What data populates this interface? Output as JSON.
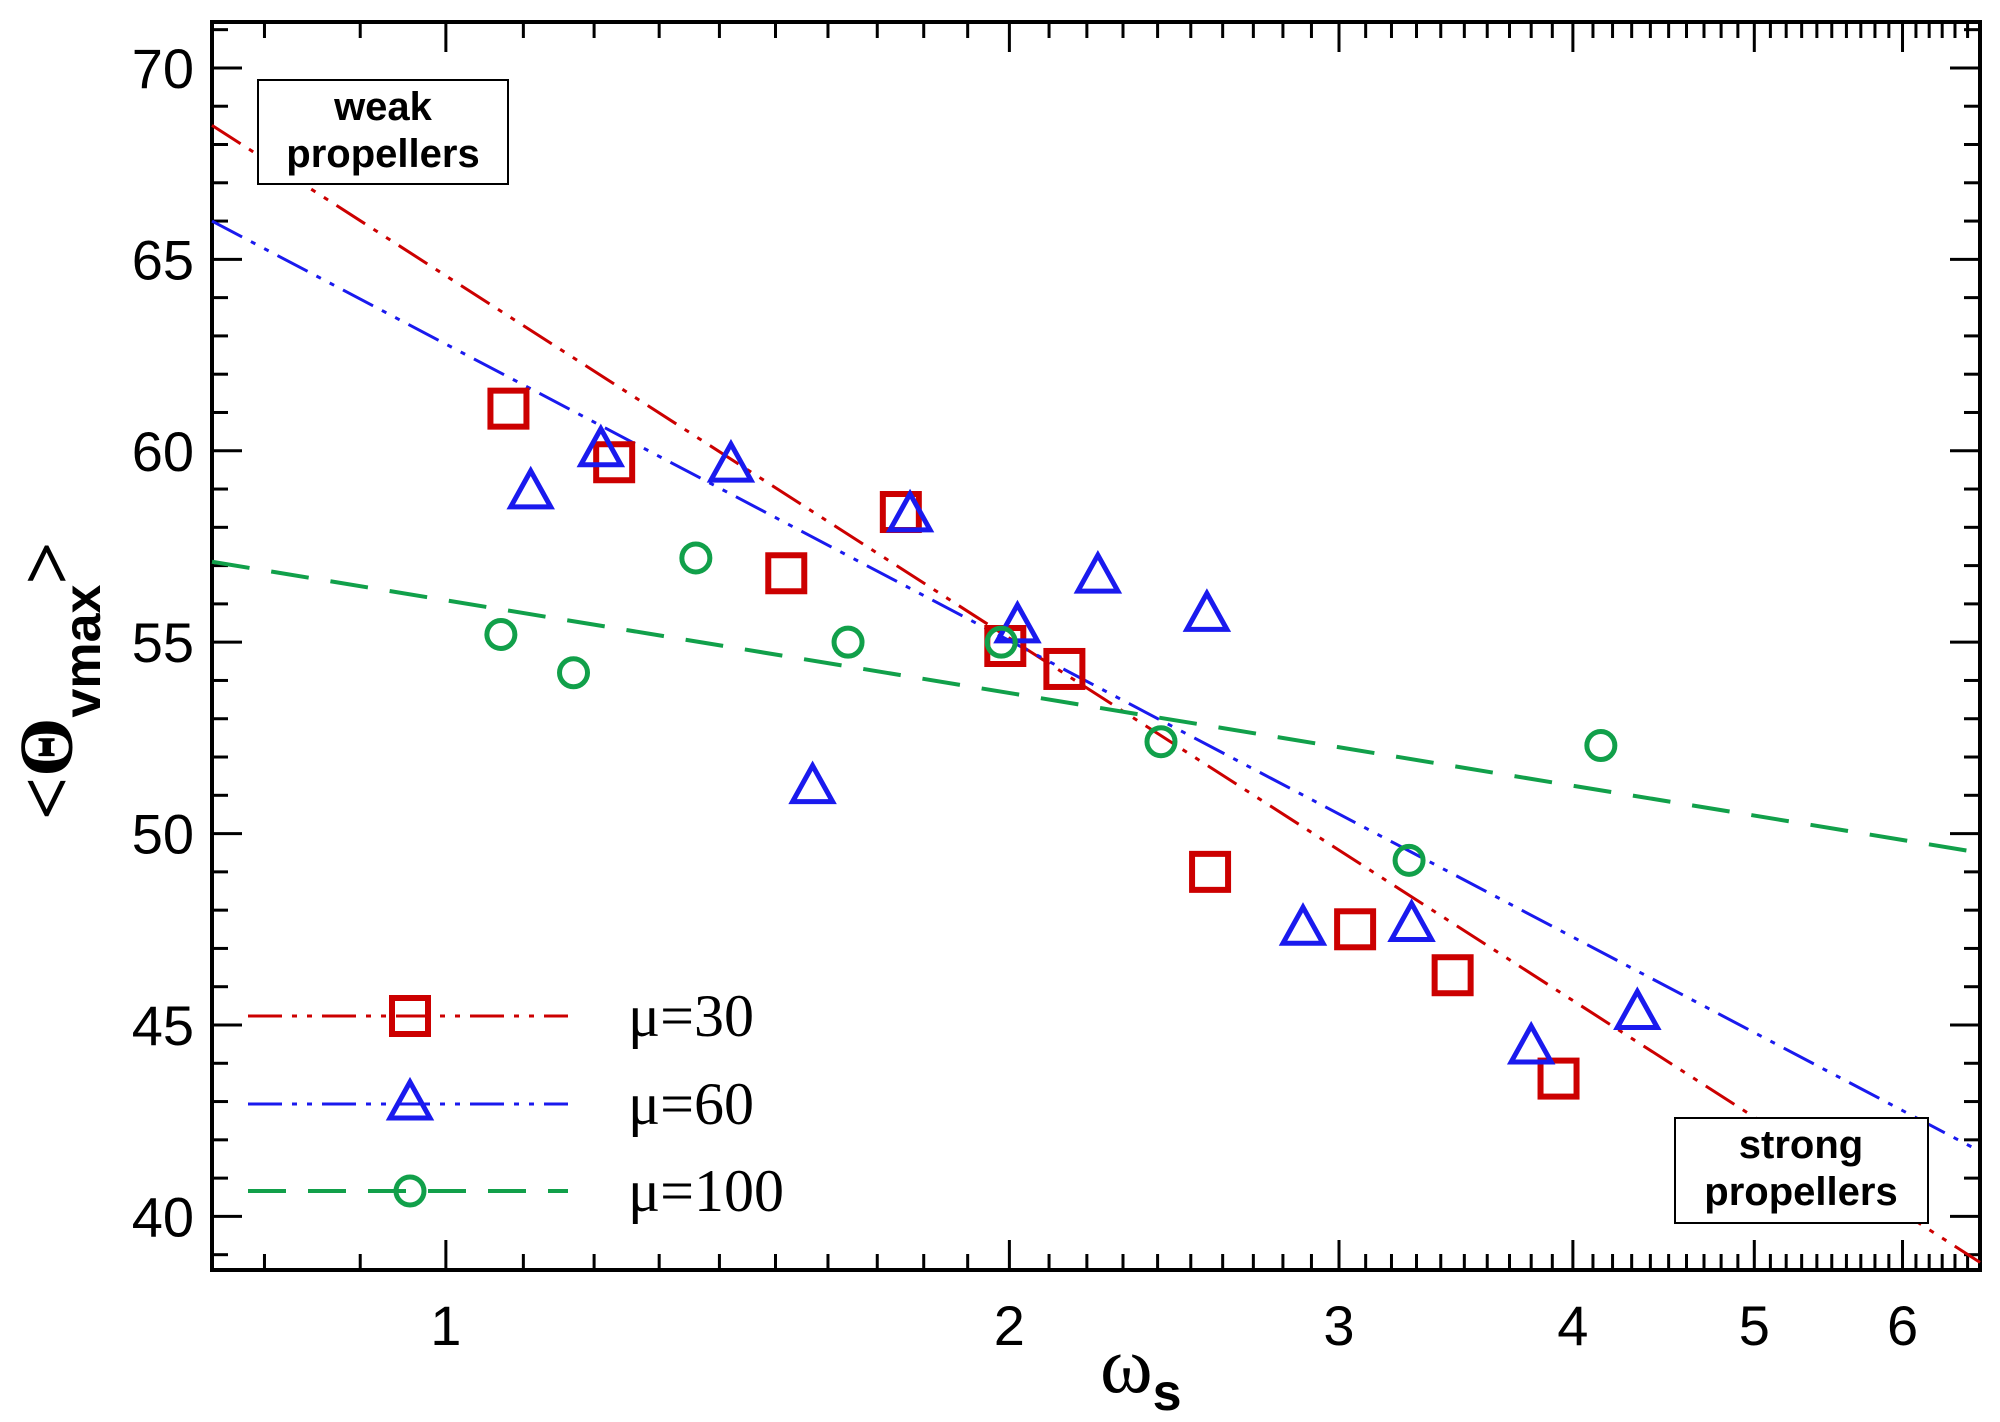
{
  "chart_data": {
    "type": "scatter",
    "title": "",
    "xlabel": {
      "symbol": "ω",
      "subscript": "s"
    },
    "ylabel": {
      "text": "<Θ",
      "subscript": "vmax",
      "close": ">"
    },
    "xscale": "log",
    "xlim": [
      0.75,
      6.6
    ],
    "ylim": [
      38.6,
      71.2
    ],
    "xticks": [
      1,
      2,
      3,
      4,
      5,
      6
    ],
    "yticks": [
      40,
      45,
      50,
      55,
      60,
      65,
      70
    ],
    "grid": false,
    "legend": {
      "position": "bottom-left"
    },
    "series": [
      {
        "name": "μ=30",
        "color": "#cc0000",
        "marker": "square",
        "line_style": "dash-dot-dot",
        "points": [
          [
            1.08,
            61.1
          ],
          [
            1.23,
            59.7
          ],
          [
            1.52,
            56.8
          ],
          [
            1.75,
            58.4
          ],
          [
            1.99,
            54.9
          ],
          [
            2.14,
            54.3
          ],
          [
            2.56,
            49.0
          ],
          [
            3.06,
            47.5
          ],
          [
            3.45,
            46.3
          ],
          [
            3.93,
            43.6
          ]
        ],
        "fit": [
          [
            0.75,
            68.5
          ],
          [
            6.6,
            38.8
          ]
        ]
      },
      {
        "name": "μ=60",
        "color": "#1a1aee",
        "marker": "triangle",
        "line_style": "dash-dot-dot",
        "points": [
          [
            1.11,
            58.9
          ],
          [
            1.21,
            60.0
          ],
          [
            1.42,
            59.6
          ],
          [
            1.57,
            51.2
          ],
          [
            1.77,
            58.3
          ],
          [
            2.02,
            55.4
          ],
          [
            2.23,
            56.7
          ],
          [
            2.55,
            55.7
          ],
          [
            2.87,
            47.5
          ],
          [
            3.28,
            47.6
          ],
          [
            3.8,
            44.4
          ],
          [
            4.33,
            45.3
          ]
        ],
        "fit": [
          [
            0.75,
            66.0
          ],
          [
            6.6,
            41.7
          ]
        ]
      },
      {
        "name": "μ=100",
        "color": "#11a04a",
        "marker": "circle",
        "line_style": "dashed",
        "points": [
          [
            1.07,
            55.2
          ],
          [
            1.17,
            54.2
          ],
          [
            1.36,
            57.2
          ],
          [
            1.64,
            55.0
          ],
          [
            1.98,
            55.0
          ],
          [
            2.41,
            52.4
          ],
          [
            3.27,
            49.3
          ],
          [
            4.14,
            52.3
          ]
        ],
        "fit": [
          [
            0.75,
            57.1
          ],
          [
            6.6,
            49.5
          ]
        ]
      }
    ],
    "annotations": [
      {
        "lines": [
          "weak",
          "propellers"
        ],
        "position": "top-left"
      },
      {
        "lines": [
          "strong",
          "propellers"
        ],
        "position": "bottom-right"
      }
    ]
  }
}
